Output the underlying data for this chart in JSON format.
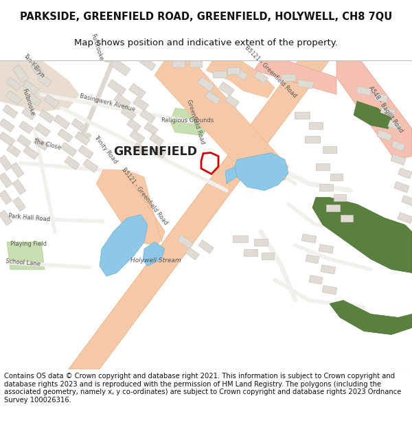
{
  "title_line1": "PARKSIDE, GREENFIELD ROAD, GREENFIELD, HOLYWELL, CH8 7QU",
  "title_line2": "Map shows position and indicative extent of the property.",
  "copyright_text": "Contains OS data © Crown copyright and database right 2021. This information is subject to Crown copyright and database rights 2023 and is reproduced with the permission of HM Land Registry. The polygons (including the associated geometry, namely x, y co-ordinates) are subject to Crown copyright and database rights 2023 Ordnance Survey 100026316.",
  "map_bg": "#f2f0ed",
  "road_main_color": "#f5c9a8",
  "road_main_edge": "#e8a878",
  "road_a548_color": "#f5c0b0",
  "road_secondary": "#e8e0d8",
  "road_minor": "#ddd8d0",
  "building_fill": "#e0dbd4",
  "building_edge": "#c8c3bc",
  "water_color": "#8ec8e8",
  "green_dark": "#5a8040",
  "green_light": "#9abf78",
  "green_playing": "#c8ddb0",
  "tan_area": "#e8ddd0",
  "plot_color": "#cc0000",
  "text_dark": "#333333",
  "text_road": "#555555",
  "title_fontsize": 10.5,
  "subtitle_fontsize": 9.5,
  "copyright_fontsize": 7.2
}
